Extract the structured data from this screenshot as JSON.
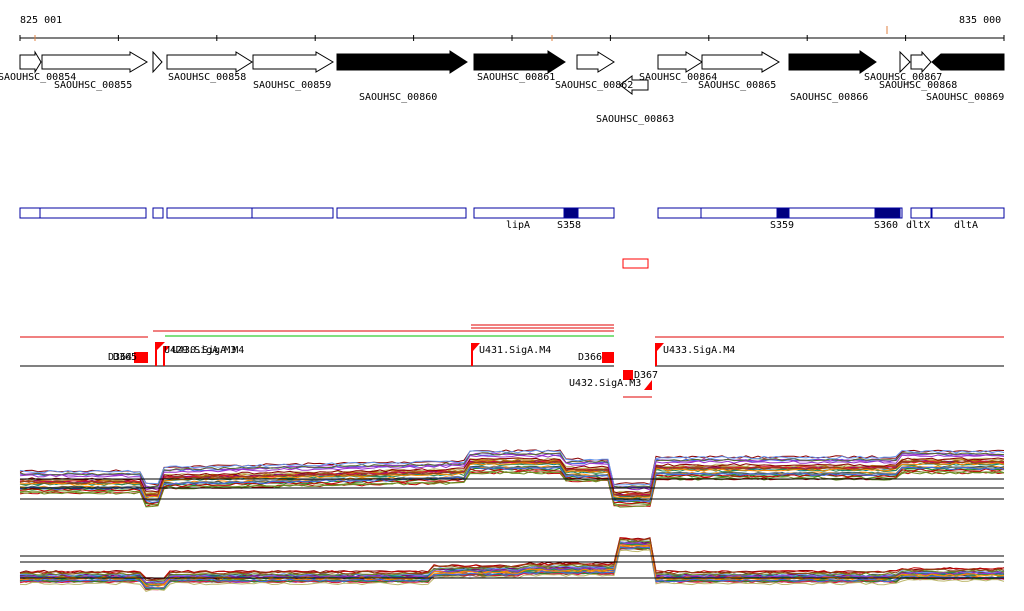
{
  "coordinates": {
    "start_label": "825 001",
    "end_label": "835 000"
  },
  "genes": [
    {
      "name": "SAOUHSC_00854",
      "strand": "+",
      "style": "open"
    },
    {
      "name": "SAOUHSC_00855",
      "strand": "+",
      "style": "open"
    },
    {
      "name": "",
      "strand": "+",
      "style": "open"
    },
    {
      "name": "SAOUHSC_00858",
      "strand": "+",
      "style": "open"
    },
    {
      "name": "SAOUHSC_00859",
      "strand": "+",
      "style": "open"
    },
    {
      "name": "SAOUHSC_00860",
      "strand": "+",
      "style": "filled"
    },
    {
      "name": "SAOUHSC_00861",
      "strand": "+",
      "style": "filled"
    },
    {
      "name": "SAOUHSC_00862",
      "strand": "+",
      "style": "open"
    },
    {
      "name": "SAOUHSC_00863",
      "strand": "-",
      "style": "open"
    },
    {
      "name": "SAOUHSC_00864",
      "strand": "+",
      "style": "open"
    },
    {
      "name": "SAOUHSC_00865",
      "strand": "+",
      "style": "open"
    },
    {
      "name": "SAOUHSC_00866",
      "strand": "+",
      "style": "filled"
    },
    {
      "name": "SAOUHSC_00867",
      "strand": "+",
      "style": "open"
    },
    {
      "name": "SAOUHSC_00868",
      "strand": "+",
      "style": "open"
    },
    {
      "name": "SAOUHSC_00869",
      "strand": "+",
      "style": "filled"
    }
  ],
  "annotations": [
    {
      "name": "lipA"
    },
    {
      "name": "S358"
    },
    {
      "name": "S359"
    },
    {
      "name": "S360"
    },
    {
      "name": "dltX"
    },
    {
      "name": "dltA"
    }
  ],
  "features": [
    {
      "name": "D364"
    },
    {
      "name": "D365"
    },
    {
      "name": "U429.SigA.M3"
    },
    {
      "name": "U430.SigA.M4"
    },
    {
      "name": "U431.SigA.M4"
    },
    {
      "name": "D366"
    },
    {
      "name": "D367"
    },
    {
      "name": "U432.SigA.M3"
    },
    {
      "name": "U433.SigA.M4"
    }
  ],
  "colors": {
    "feature_red": "#ff0000",
    "domain_blue": "#000080",
    "green_line": "#00c000",
    "gene_fill": "#000000"
  }
}
